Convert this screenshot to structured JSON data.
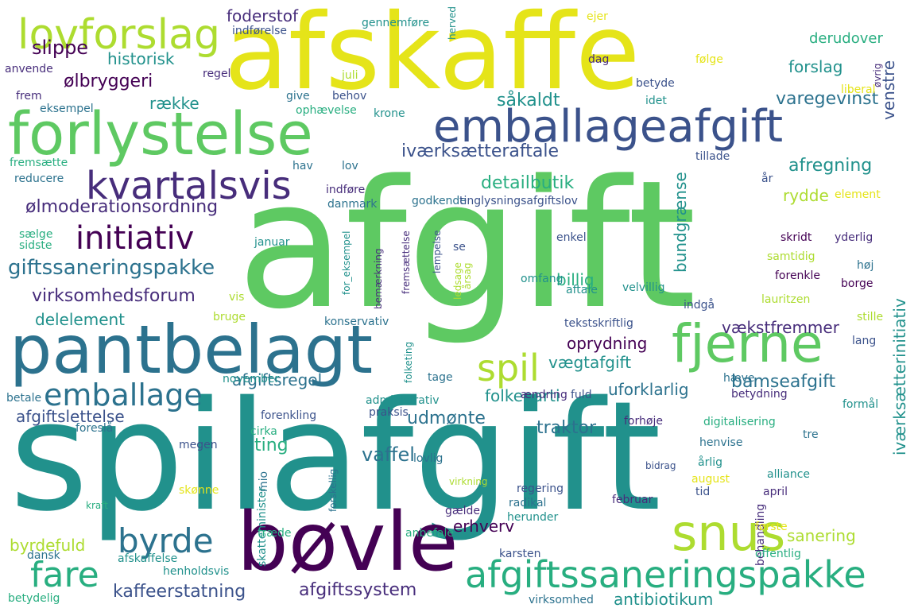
{
  "palette": {
    "dark_purple": "#440154",
    "indigo": "#472d7b",
    "blue": "#3b528b",
    "teal_blue": "#2c728e",
    "teal": "#21918c",
    "sea_green": "#28ae80",
    "green": "#5ec962",
    "lime": "#addc30",
    "yellow": "#e5e419"
  },
  "words": [
    {
      "text": "afgift",
      "weight": 1.0,
      "rotated": false,
      "color": "#5ec962"
    },
    {
      "text": "spilafgift",
      "weight": 0.95,
      "rotated": false,
      "color": "#21918c"
    },
    {
      "text": "afskaffe",
      "weight": 0.8,
      "rotated": false,
      "color": "#e5e419"
    },
    {
      "text": "pantbelagt",
      "weight": 0.6,
      "rotated": false,
      "color": "#2c728e"
    },
    {
      "text": "forlystelse",
      "weight": 0.55,
      "rotated": false,
      "color": "#5ec962"
    },
    {
      "text": "emballageafgift",
      "weight": 0.5,
      "rotated": false,
      "color": "#3b528b"
    },
    {
      "text": "bøvle",
      "weight": 0.6,
      "rotated": false,
      "color": "#440154"
    },
    {
      "text": "fjerne",
      "weight": 0.45,
      "rotated": false,
      "color": "#5ec962"
    },
    {
      "text": "lovforslag",
      "weight": 0.4,
      "rotated": false,
      "color": "#addc30"
    },
    {
      "text": "snus",
      "weight": 0.45,
      "rotated": false,
      "color": "#addc30"
    },
    {
      "text": "afgiftssaneringspakke",
      "weight": 0.38,
      "rotated": false,
      "color": "#28ae80"
    },
    {
      "text": "kvartalsvis",
      "weight": 0.38,
      "rotated": false,
      "color": "#472d7b"
    },
    {
      "text": "emballage",
      "weight": 0.33,
      "rotated": false,
      "color": "#2c728e"
    },
    {
      "text": "initiativ",
      "weight": 0.33,
      "rotated": false,
      "color": "#440154"
    },
    {
      "text": "byrde",
      "weight": 0.33,
      "rotated": false,
      "color": "#2c728e"
    },
    {
      "text": "fare",
      "weight": 0.33,
      "rotated": false,
      "color": "#28ae80"
    },
    {
      "text": "spil",
      "weight": 0.33,
      "rotated": false,
      "color": "#addc30"
    },
    {
      "text": "giftssaneringspakke",
      "weight": 0.22,
      "rotated": false,
      "color": "#2c728e"
    },
    {
      "text": "ølmoderationsordning",
      "weight": 0.18,
      "rotated": false,
      "color": "#472d7b"
    },
    {
      "text": "virksomhedsforum",
      "weight": 0.2,
      "rotated": false,
      "color": "#472d7b"
    },
    {
      "text": "iværksætteraftale",
      "weight": 0.2,
      "rotated": false,
      "color": "#3b528b"
    },
    {
      "text": "kaffeerstatning",
      "weight": 0.2,
      "rotated": false,
      "color": "#3b528b"
    },
    {
      "text": "afgiftssystem",
      "weight": 0.2,
      "rotated": false,
      "color": "#472d7b"
    },
    {
      "text": "detailbutik",
      "weight": 0.2,
      "rotated": false,
      "color": "#28ae80"
    },
    {
      "text": "varegevinst",
      "weight": 0.18,
      "rotated": false,
      "color": "#2c728e"
    },
    {
      "text": "afregning",
      "weight": 0.18,
      "rotated": false,
      "color": "#21918c"
    },
    {
      "text": "såkaldt",
      "weight": 0.18,
      "rotated": false,
      "color": "#21918c"
    },
    {
      "text": "slippe",
      "weight": 0.18,
      "rotated": false,
      "color": "#440154"
    },
    {
      "text": "ølbryggeri",
      "weight": 0.16,
      "rotated": false,
      "color": "#440154"
    },
    {
      "text": "historisk",
      "weight": 0.16,
      "rotated": false,
      "color": "#21918c"
    },
    {
      "text": "række",
      "weight": 0.16,
      "rotated": false,
      "color": "#21918c"
    },
    {
      "text": "foderstof",
      "weight": 0.16,
      "rotated": false,
      "color": "#472d7b"
    },
    {
      "text": "derudover",
      "weight": 0.14,
      "rotated": false,
      "color": "#28ae80"
    },
    {
      "text": "forslag",
      "weight": 0.16,
      "rotated": false,
      "color": "#21918c"
    },
    {
      "text": "udmønte",
      "weight": 0.18,
      "rotated": false,
      "color": "#2c728e"
    },
    {
      "text": "ting",
      "weight": 0.18,
      "rotated": false,
      "color": "#28ae80"
    },
    {
      "text": "vaffel",
      "weight": 0.18,
      "rotated": false,
      "color": "#2c728e"
    },
    {
      "text": "traktor",
      "weight": 0.18,
      "rotated": false,
      "color": "#2c728e"
    },
    {
      "text": "bamseafgift",
      "weight": 0.18,
      "rotated": false,
      "color": "#2c728e"
    },
    {
      "text": "uforklarlig",
      "weight": 0.18,
      "rotated": false,
      "color": "#2c728e"
    },
    {
      "text": "folkeparti",
      "weight": 0.18,
      "rotated": false,
      "color": "#21918c"
    },
    {
      "text": "vækstfremmer",
      "weight": 0.16,
      "rotated": false,
      "color": "#472d7b"
    },
    {
      "text": "oprydning",
      "weight": 0.16,
      "rotated": false,
      "color": "#440154"
    },
    {
      "text": "vægtafgift",
      "weight": 0.16,
      "rotated": false,
      "color": "#21918c"
    },
    {
      "text": "afgiftsregel",
      "weight": 0.16,
      "rotated": false,
      "color": "#2c728e"
    },
    {
      "text": "afgiftslettelse",
      "weight": 0.16,
      "rotated": false,
      "color": "#3b528b"
    },
    {
      "text": "delelement",
      "weight": 0.16,
      "rotated": false,
      "color": "#21918c"
    },
    {
      "text": "billig",
      "weight": 0.16,
      "rotated": false,
      "color": "#28ae80"
    },
    {
      "text": "rydde",
      "weight": 0.16,
      "rotated": false,
      "color": "#addc30"
    },
    {
      "text": "sanering",
      "weight": 0.16,
      "rotated": false,
      "color": "#addc30"
    },
    {
      "text": "erhverv",
      "weight": 0.16,
      "rotated": false,
      "color": "#440154"
    },
    {
      "text": "antibiotikum",
      "weight": 0.16,
      "rotated": false,
      "color": "#21918c"
    },
    {
      "text": "byrdefuld",
      "weight": 0.16,
      "rotated": false,
      "color": "#addc30"
    },
    {
      "text": "bundgrænse",
      "weight": 0.16,
      "rotated": true,
      "color": "#21918c"
    },
    {
      "text": "iværksætterinitiativ",
      "weight": 0.16,
      "rotated": true,
      "color": "#21918c"
    },
    {
      "text": "venstre",
      "weight": 0.14,
      "rotated": true,
      "color": "#3b528b"
    },
    {
      "text": "indførelse",
      "weight": 0.1,
      "rotated": false,
      "color": "#3b528b"
    },
    {
      "text": "gennemføre",
      "weight": 0.09,
      "rotated": false,
      "color": "#21918c"
    },
    {
      "text": "herved",
      "weight": 0.08,
      "rotated": true,
      "color": "#21918c"
    },
    {
      "text": "ejer",
      "weight": 0.09,
      "rotated": false,
      "color": "#e5e419"
    },
    {
      "text": "anvende",
      "weight": 0.09,
      "rotated": false,
      "color": "#472d7b"
    },
    {
      "text": "regel",
      "weight": 0.09,
      "rotated": false,
      "color": "#472d7b"
    },
    {
      "text": "juli",
      "weight": 0.09,
      "rotated": false,
      "color": "#addc30"
    },
    {
      "text": "dag",
      "weight": 0.09,
      "rotated": false,
      "color": "#472d7b"
    },
    {
      "text": "følge",
      "weight": 0.09,
      "rotated": false,
      "color": "#e5e419"
    },
    {
      "text": "øvrig",
      "weight": 0.09,
      "rotated": true,
      "color": "#472d7b"
    },
    {
      "text": "betyde",
      "weight": 0.09,
      "rotated": false,
      "color": "#3b528b"
    },
    {
      "text": "liberal",
      "weight": 0.1,
      "rotated": false,
      "color": "#e5e419"
    },
    {
      "text": "idet",
      "weight": 0.09,
      "rotated": false,
      "color": "#21918c"
    },
    {
      "text": "frem",
      "weight": 0.09,
      "rotated": false,
      "color": "#472d7b"
    },
    {
      "text": "eksempel",
      "weight": 0.09,
      "rotated": false,
      "color": "#2c728e"
    },
    {
      "text": "give",
      "weight": 0.09,
      "rotated": false,
      "color": "#2c728e"
    },
    {
      "text": "behov",
      "weight": 0.09,
      "rotated": false,
      "color": "#3b528b"
    },
    {
      "text": "ophævelse",
      "weight": 0.09,
      "rotated": false,
      "color": "#28ae80"
    },
    {
      "text": "krone",
      "weight": 0.09,
      "rotated": false,
      "color": "#21918c"
    },
    {
      "text": "fremsætte",
      "weight": 0.09,
      "rotated": false,
      "color": "#28ae80"
    },
    {
      "text": "reducere",
      "weight": 0.09,
      "rotated": false,
      "color": "#2c728e"
    },
    {
      "text": "hav",
      "weight": 0.09,
      "rotated": false,
      "color": "#2c728e"
    },
    {
      "text": "lov",
      "weight": 0.09,
      "rotated": false,
      "color": "#2c728e"
    },
    {
      "text": "tillade",
      "weight": 0.09,
      "rotated": false,
      "color": "#3b528b"
    },
    {
      "text": "år",
      "weight": 0.09,
      "rotated": false,
      "color": "#3b528b"
    },
    {
      "text": "element",
      "weight": 0.09,
      "rotated": false,
      "color": "#e5e419"
    },
    {
      "text": "indføre",
      "weight": 0.09,
      "rotated": false,
      "color": "#472d7b"
    },
    {
      "text": "danmark",
      "weight": 0.09,
      "rotated": false,
      "color": "#2c728e"
    },
    {
      "text": "godkende",
      "weight": 0.09,
      "rotated": false,
      "color": "#2c728e"
    },
    {
      "text": "tinglysningsafgiftslov",
      "weight": 0.1,
      "rotated": false,
      "color": "#3b528b"
    },
    {
      "text": "sælge",
      "weight": 0.09,
      "rotated": false,
      "color": "#28ae80"
    },
    {
      "text": "sidste",
      "weight": 0.09,
      "rotated": false,
      "color": "#28ae80"
    },
    {
      "text": "januar",
      "weight": 0.09,
      "rotated": false,
      "color": "#21918c"
    },
    {
      "text": "for_eksempel",
      "weight": 0.08,
      "rotated": true,
      "color": "#21918c"
    },
    {
      "text": "fremsættelse",
      "weight": 0.08,
      "rotated": true,
      "color": "#472d7b"
    },
    {
      "text": "lempelse",
      "weight": 0.08,
      "rotated": true,
      "color": "#3b528b"
    },
    {
      "text": "se",
      "weight": 0.09,
      "rotated": false,
      "color": "#3b528b"
    },
    {
      "text": "enkel",
      "weight": 0.09,
      "rotated": false,
      "color": "#3b528b"
    },
    {
      "text": "skridt",
      "weight": 0.09,
      "rotated": false,
      "color": "#440154"
    },
    {
      "text": "yderlig",
      "weight": 0.09,
      "rotated": false,
      "color": "#472d7b"
    },
    {
      "text": "samtidig",
      "weight": 0.09,
      "rotated": false,
      "color": "#addc30"
    },
    {
      "text": "høj",
      "weight": 0.09,
      "rotated": false,
      "color": "#2c728e"
    },
    {
      "text": "årsag",
      "weight": 0.08,
      "rotated": true,
      "color": "#addc30"
    },
    {
      "text": "forenkle",
      "weight": 0.09,
      "rotated": false,
      "color": "#440154"
    },
    {
      "text": "borge",
      "weight": 0.09,
      "rotated": false,
      "color": "#440154"
    },
    {
      "text": "bemærkning",
      "weight": 0.08,
      "rotated": true,
      "color": "#472d7b"
    },
    {
      "text": "ledsage",
      "weight": 0.08,
      "rotated": true,
      "color": "#addc30"
    },
    {
      "text": "omfang",
      "weight": 0.09,
      "rotated": false,
      "color": "#21918c"
    },
    {
      "text": "aftale",
      "weight": 0.09,
      "rotated": false,
      "color": "#21918c"
    },
    {
      "text": "velvillig",
      "weight": 0.09,
      "rotated": false,
      "color": "#21918c"
    },
    {
      "text": "lauritzen",
      "weight": 0.09,
      "rotated": false,
      "color": "#addc30"
    },
    {
      "text": "vis",
      "weight": 0.09,
      "rotated": false,
      "color": "#addc30"
    },
    {
      "text": "bruge",
      "weight": 0.09,
      "rotated": false,
      "color": "#addc30"
    },
    {
      "text": "konservativ",
      "weight": 0.09,
      "rotated": false,
      "color": "#2c728e"
    },
    {
      "text": "indgå",
      "weight": 0.09,
      "rotated": false,
      "color": "#3b528b"
    },
    {
      "text": "tekstskriftlig",
      "weight": 0.09,
      "rotated": false,
      "color": "#3b528b"
    },
    {
      "text": "stille",
      "weight": 0.09,
      "rotated": false,
      "color": "#addc30"
    },
    {
      "text": "lang",
      "weight": 0.09,
      "rotated": false,
      "color": "#3b528b"
    },
    {
      "text": "november",
      "weight": 0.09,
      "rotated": false,
      "color": "#21918c"
    },
    {
      "text": "folketing",
      "weight": 0.08,
      "rotated": true,
      "color": "#21918c"
    },
    {
      "text": "tage",
      "weight": 0.09,
      "rotated": false,
      "color": "#2c728e"
    },
    {
      "text": "hæve",
      "weight": 0.09,
      "rotated": false,
      "color": "#2c728e"
    },
    {
      "text": "ændring",
      "weight": 0.09,
      "rotated": false,
      "color": "#472d7b"
    },
    {
      "text": "fuld",
      "weight": 0.09,
      "rotated": false,
      "color": "#3b528b"
    },
    {
      "text": "betale",
      "weight": 0.09,
      "rotated": false,
      "color": "#2c728e"
    },
    {
      "text": "administrativ",
      "weight": 0.09,
      "rotated": false,
      "color": "#21918c"
    },
    {
      "text": "forenkling",
      "weight": 0.09,
      "rotated": false,
      "color": "#3b528b"
    },
    {
      "text": "betydning",
      "weight": 0.09,
      "rotated": false,
      "color": "#472d7b"
    },
    {
      "text": "formål",
      "weight": 0.09,
      "rotated": false,
      "color": "#21918c"
    },
    {
      "text": "praksis",
      "weight": 0.09,
      "rotated": false,
      "color": "#3b528b"
    },
    {
      "text": "forhøje",
      "weight": 0.09,
      "rotated": false,
      "color": "#472d7b"
    },
    {
      "text": "digitalisering",
      "weight": 0.09,
      "rotated": false,
      "color": "#28ae80"
    },
    {
      "text": "foreslå",
      "weight": 0.09,
      "rotated": false,
      "color": "#2c728e"
    },
    {
      "text": "cirka",
      "weight": 0.09,
      "rotated": false,
      "color": "#28ae80"
    },
    {
      "text": "tre",
      "weight": 0.09,
      "rotated": false,
      "color": "#2c728e"
    },
    {
      "text": "megen",
      "weight": 0.09,
      "rotated": false,
      "color": "#3b528b"
    },
    {
      "text": "henvise",
      "weight": 0.09,
      "rotated": false,
      "color": "#2c728e"
    },
    {
      "text": "årlig",
      "weight": 0.09,
      "rotated": false,
      "color": "#21918c"
    },
    {
      "text": "lovlig",
      "weight": 0.09,
      "rotated": false,
      "color": "#2c728e"
    },
    {
      "text": "mio",
      "weight": 0.08,
      "rotated": true,
      "color": "#2c728e"
    },
    {
      "text": "bidrag",
      "weight": 0.09,
      "rotated": false,
      "color": "#3b528b"
    },
    {
      "text": "alliance",
      "weight": 0.09,
      "rotated": false,
      "color": "#21918c"
    },
    {
      "text": "august",
      "weight": 0.09,
      "rotated": false,
      "color": "#e5e419"
    },
    {
      "text": "tid",
      "weight": 0.09,
      "rotated": false,
      "color": "#3b528b"
    },
    {
      "text": "regering",
      "weight": 0.09,
      "rotated": false,
      "color": "#3b528b"
    },
    {
      "text": "april",
      "weight": 0.09,
      "rotated": false,
      "color": "#472d7b"
    },
    {
      "text": "skønne",
      "weight": 0.09,
      "rotated": false,
      "color": "#e5e419"
    },
    {
      "text": "skatteminister",
      "weight": 0.08,
      "rotated": true,
      "color": "#21918c"
    },
    {
      "text": "forskellig",
      "weight": 0.08,
      "rotated": true,
      "color": "#2c728e"
    },
    {
      "text": "virkning",
      "weight": 0.09,
      "rotated": false,
      "color": "#addc30"
    },
    {
      "text": "februar",
      "weight": 0.09,
      "rotated": false,
      "color": "#472d7b"
    },
    {
      "text": "radikal",
      "weight": 0.09,
      "rotated": false,
      "color": "#2c728e"
    },
    {
      "text": "behandling",
      "weight": 0.08,
      "rotated": true,
      "color": "#472d7b"
    },
    {
      "text": "kraft",
      "weight": 0.09,
      "rotated": false,
      "color": "#28ae80"
    },
    {
      "text": "gælde",
      "weight": 0.09,
      "rotated": false,
      "color": "#472d7b"
    },
    {
      "text": "herunder",
      "weight": 0.09,
      "rotated": false,
      "color": "#21918c"
    },
    {
      "text": "første",
      "weight": 0.09,
      "rotated": false,
      "color": "#e5e419"
    },
    {
      "text": "træde",
      "weight": 0.09,
      "rotated": false,
      "color": "#28ae80"
    },
    {
      "text": "anbefale",
      "weight": 0.09,
      "rotated": false,
      "color": "#28ae80"
    },
    {
      "text": "dansk",
      "weight": 0.09,
      "rotated": false,
      "color": "#2c728e"
    },
    {
      "text": "afskaffelse",
      "weight": 0.09,
      "rotated": false,
      "color": "#21918c"
    },
    {
      "text": "karsten",
      "weight": 0.09,
      "rotated": false,
      "color": "#3b528b"
    },
    {
      "text": "offentlig",
      "weight": 0.09,
      "rotated": false,
      "color": "#28ae80"
    },
    {
      "text": "henholdsvis",
      "weight": 0.09,
      "rotated": false,
      "color": "#21918c"
    },
    {
      "text": "betydelig",
      "weight": 0.09,
      "rotated": false,
      "color": "#28ae80"
    },
    {
      "text": "virksomhed",
      "weight": 0.09,
      "rotated": false,
      "color": "#2c728e"
    }
  ]
}
